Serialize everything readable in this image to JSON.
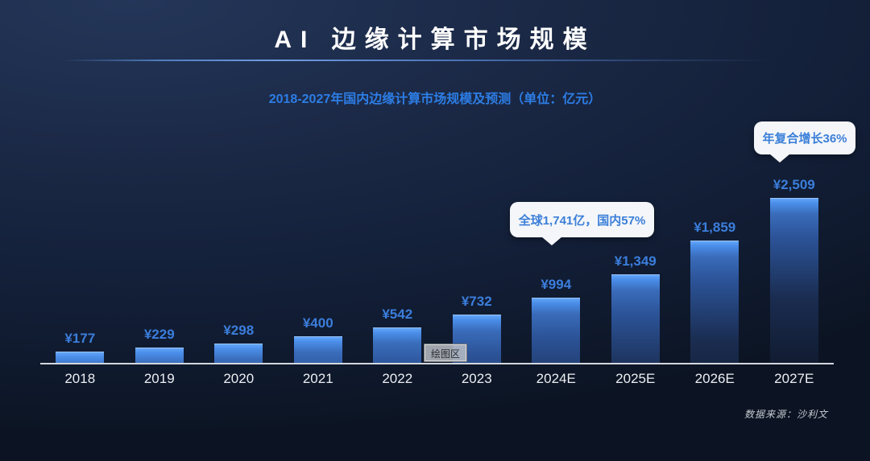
{
  "page": {
    "title": "AI 边缘计算市场规模",
    "subtitle": "2018-2027年国内边缘计算市场规模及预测（单位：亿元）",
    "source_note": "数据来源：沙利文",
    "plot_area_tooltip": "绘图区"
  },
  "callouts": {
    "global_share": "全球1,741亿，国内57%",
    "cagr": "年复合增长36%"
  },
  "chart_data": {
    "type": "bar",
    "title": "2018-2027年国内边缘计算市场规模及预测",
    "unit": "亿元",
    "categories": [
      "2018",
      "2019",
      "2020",
      "2021",
      "2022",
      "2023",
      "2024E",
      "2025E",
      "2026E",
      "2027E"
    ],
    "values": [
      177,
      229,
      298,
      400,
      542,
      732,
      994,
      1349,
      1859,
      2509
    ],
    "value_labels": [
      "¥177",
      "¥229",
      "¥298",
      "¥400",
      "¥542",
      "¥732",
      "¥994",
      "¥1,349",
      "¥1,859",
      "¥2,509"
    ],
    "ylim": [
      0,
      2700
    ],
    "grid": false,
    "legend": false,
    "bar_color_top": "#66a9fc",
    "bar_color_bottom": "#121d33",
    "value_label_color": "#3b7edc",
    "axis_color": "#d3d7dd",
    "annotations": [
      {
        "target": "2024E",
        "text": "全球1,741亿，国内57%"
      },
      {
        "target": "2027E",
        "text": "年复合增长36%"
      }
    ]
  },
  "colors": {
    "background_top": "#243659",
    "background_bottom": "#0c1423",
    "title_text": "#ffffff",
    "subtitle_text": "#2d7de5",
    "callout_bg": "#f4f6f9",
    "callout_text": "#3b7fd8"
  }
}
